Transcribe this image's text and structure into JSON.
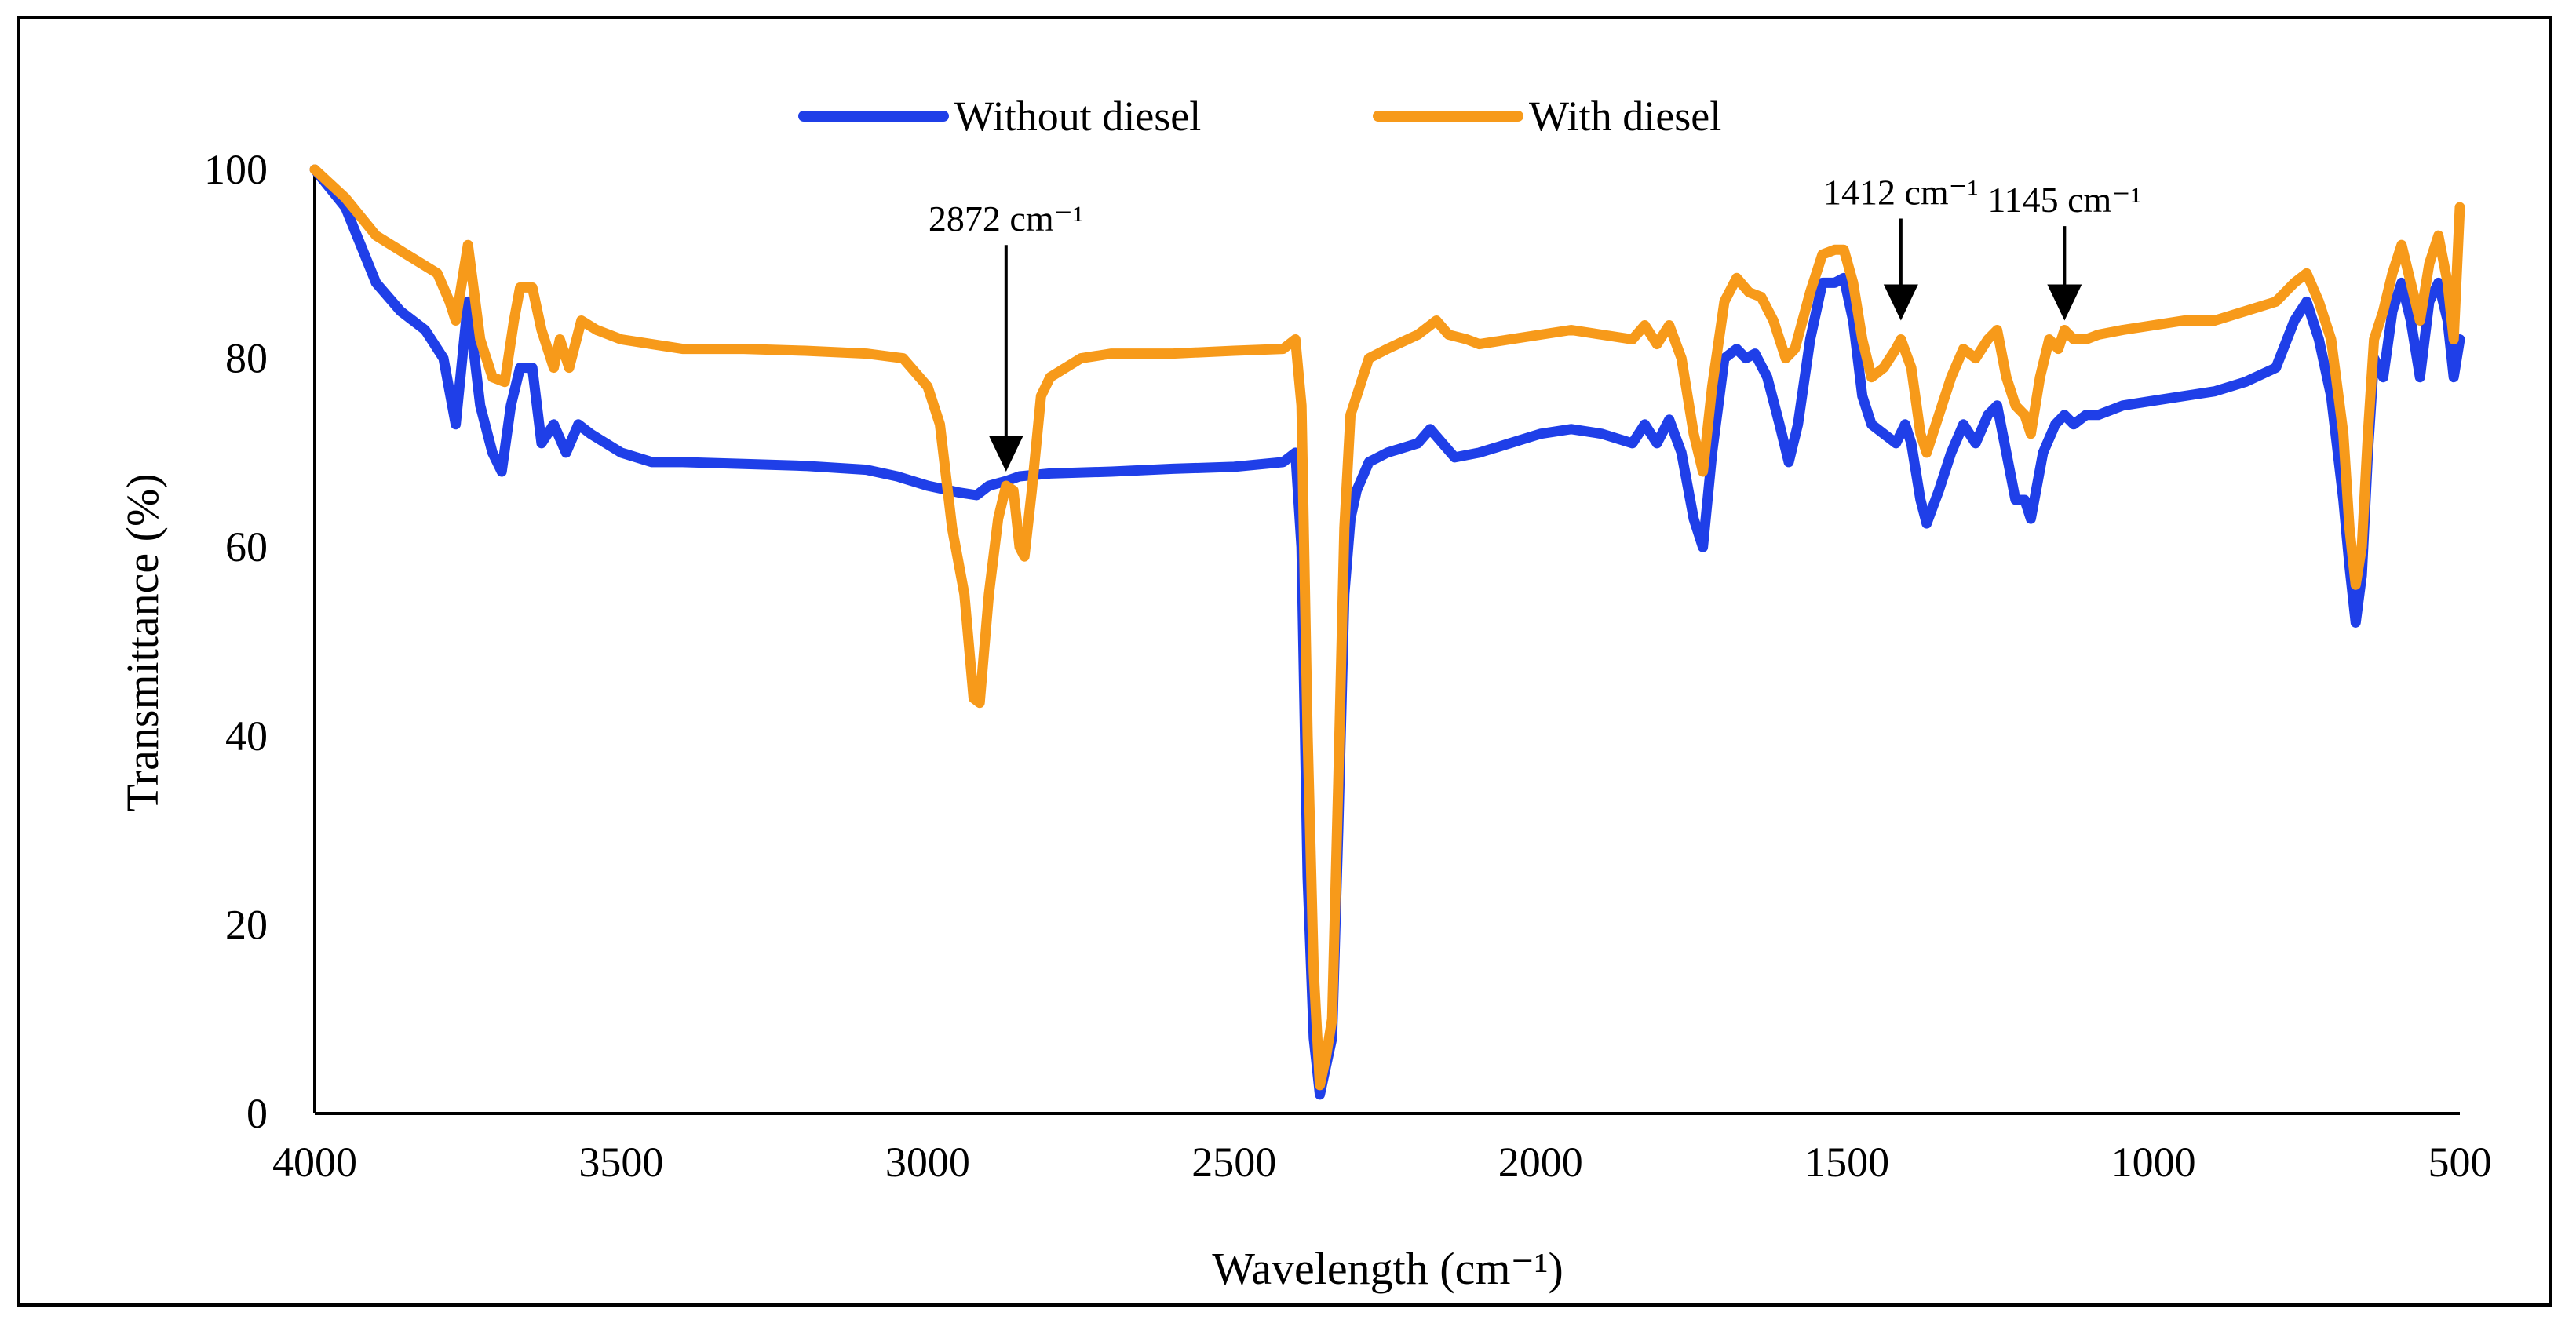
{
  "chart_data": {
    "type": "line",
    "title": "",
    "xlabel": "Wavelength (cm⁻¹)",
    "ylabel": "Transmittance (%)",
    "xlim": [
      4000,
      500
    ],
    "ylim": [
      0,
      100
    ],
    "x_ticks": [
      "4000",
      "3500",
      "3000",
      "2500",
      "2000",
      "1500",
      "1000",
      "500"
    ],
    "y_ticks": [
      "0",
      "20",
      "40",
      "60",
      "80",
      "100"
    ],
    "legend_position": "top-center",
    "grid": false,
    "series": [
      {
        "name": "Without diesel",
        "color": "#1f3fe8",
        "points": [
          [
            4000,
            100
          ],
          [
            3950,
            96
          ],
          [
            3900,
            88
          ],
          [
            3860,
            85
          ],
          [
            3820,
            83
          ],
          [
            3790,
            80
          ],
          [
            3770,
            73
          ],
          [
            3750,
            86
          ],
          [
            3730,
            75
          ],
          [
            3710,
            70
          ],
          [
            3695,
            68
          ],
          [
            3680,
            75
          ],
          [
            3665,
            79
          ],
          [
            3645,
            79
          ],
          [
            3630,
            71
          ],
          [
            3610,
            73
          ],
          [
            3590,
            70
          ],
          [
            3570,
            73
          ],
          [
            3550,
            72
          ],
          [
            3500,
            70
          ],
          [
            3450,
            69
          ],
          [
            3400,
            69
          ],
          [
            3300,
            68.8
          ],
          [
            3200,
            68.6
          ],
          [
            3100,
            68.2
          ],
          [
            3050,
            67.5
          ],
          [
            3000,
            66.5
          ],
          [
            2950,
            65.8
          ],
          [
            2920,
            65.5
          ],
          [
            2900,
            66.5
          ],
          [
            2872,
            67
          ],
          [
            2850,
            67.5
          ],
          [
            2800,
            67.8
          ],
          [
            2700,
            68
          ],
          [
            2600,
            68.3
          ],
          [
            2500,
            68.5
          ],
          [
            2420,
            69
          ],
          [
            2400,
            70
          ],
          [
            2390,
            60
          ],
          [
            2380,
            25
          ],
          [
            2370,
            8
          ],
          [
            2360,
            2
          ],
          [
            2350,
            5
          ],
          [
            2340,
            8
          ],
          [
            2330,
            30
          ],
          [
            2320,
            55
          ],
          [
            2310,
            63
          ],
          [
            2300,
            66
          ],
          [
            2280,
            69
          ],
          [
            2250,
            70
          ],
          [
            2200,
            71
          ],
          [
            2180,
            72.5
          ],
          [
            2160,
            71
          ],
          [
            2140,
            69.5
          ],
          [
            2100,
            70
          ],
          [
            2050,
            71
          ],
          [
            2000,
            72
          ],
          [
            1950,
            72.5
          ],
          [
            1900,
            72
          ],
          [
            1850,
            71
          ],
          [
            1830,
            73
          ],
          [
            1810,
            71
          ],
          [
            1790,
            73.5
          ],
          [
            1770,
            70
          ],
          [
            1750,
            63
          ],
          [
            1735,
            60
          ],
          [
            1720,
            70
          ],
          [
            1700,
            80
          ],
          [
            1680,
            81
          ],
          [
            1665,
            80
          ],
          [
            1650,
            80.5
          ],
          [
            1630,
            78
          ],
          [
            1610,
            73
          ],
          [
            1595,
            69
          ],
          [
            1580,
            73
          ],
          [
            1560,
            82
          ],
          [
            1540,
            88
          ],
          [
            1520,
            88
          ],
          [
            1505,
            88.5
          ],
          [
            1490,
            84
          ],
          [
            1475,
            76
          ],
          [
            1460,
            73
          ],
          [
            1440,
            72
          ],
          [
            1420,
            71
          ],
          [
            1405,
            73
          ],
          [
            1395,
            71
          ],
          [
            1380,
            65
          ],
          [
            1370,
            62.5
          ],
          [
            1350,
            66
          ],
          [
            1330,
            70
          ],
          [
            1310,
            73
          ],
          [
            1290,
            71
          ],
          [
            1270,
            74
          ],
          [
            1255,
            75
          ],
          [
            1240,
            70
          ],
          [
            1225,
            65
          ],
          [
            1210,
            65
          ],
          [
            1200,
            63
          ],
          [
            1180,
            70
          ],
          [
            1160,
            73
          ],
          [
            1145,
            74
          ],
          [
            1130,
            73
          ],
          [
            1110,
            74
          ],
          [
            1090,
            74
          ],
          [
            1050,
            75
          ],
          [
            1000,
            75.5
          ],
          [
            950,
            76
          ],
          [
            900,
            76.5
          ],
          [
            850,
            77.5
          ],
          [
            800,
            79
          ],
          [
            770,
            84
          ],
          [
            750,
            86
          ],
          [
            730,
            82
          ],
          [
            710,
            76
          ],
          [
            690,
            65
          ],
          [
            680,
            58
          ],
          [
            670,
            52
          ],
          [
            660,
            57
          ],
          [
            650,
            70
          ],
          [
            640,
            80
          ],
          [
            625,
            78
          ],
          [
            610,
            85
          ],
          [
            595,
            88
          ],
          [
            580,
            84
          ],
          [
            565,
            78
          ],
          [
            550,
            86
          ],
          [
            535,
            88
          ],
          [
            520,
            84
          ],
          [
            510,
            78
          ],
          [
            500,
            82
          ]
        ]
      },
      {
        "name": "With diesel",
        "color": "#f79a1a",
        "points": [
          [
            4000,
            100
          ],
          [
            3950,
            97
          ],
          [
            3900,
            93
          ],
          [
            3850,
            91
          ],
          [
            3800,
            89
          ],
          [
            3780,
            86
          ],
          [
            3770,
            84
          ],
          [
            3750,
            92
          ],
          [
            3730,
            82
          ],
          [
            3710,
            78
          ],
          [
            3690,
            77.5
          ],
          [
            3675,
            84
          ],
          [
            3665,
            87.5
          ],
          [
            3645,
            87.5
          ],
          [
            3630,
            83
          ],
          [
            3610,
            79
          ],
          [
            3600,
            82
          ],
          [
            3585,
            79
          ],
          [
            3565,
            84
          ],
          [
            3540,
            83
          ],
          [
            3500,
            82
          ],
          [
            3450,
            81.5
          ],
          [
            3400,
            81
          ],
          [
            3300,
            81
          ],
          [
            3200,
            80.8
          ],
          [
            3100,
            80.5
          ],
          [
            3040,
            80
          ],
          [
            3000,
            77
          ],
          [
            2980,
            73
          ],
          [
            2960,
            62
          ],
          [
            2940,
            55
          ],
          [
            2925,
            44
          ],
          [
            2915,
            43.5
          ],
          [
            2900,
            55
          ],
          [
            2885,
            63
          ],
          [
            2872,
            66.5
          ],
          [
            2860,
            66
          ],
          [
            2850,
            60
          ],
          [
            2842,
            59
          ],
          [
            2830,
            66
          ],
          [
            2815,
            76
          ],
          [
            2800,
            78
          ],
          [
            2750,
            80
          ],
          [
            2700,
            80.5
          ],
          [
            2600,
            80.5
          ],
          [
            2500,
            80.8
          ],
          [
            2420,
            81
          ],
          [
            2400,
            82
          ],
          [
            2390,
            75
          ],
          [
            2380,
            40
          ],
          [
            2370,
            15
          ],
          [
            2360,
            3
          ],
          [
            2350,
            6
          ],
          [
            2340,
            10
          ],
          [
            2330,
            35
          ],
          [
            2320,
            62
          ],
          [
            2310,
            74
          ],
          [
            2300,
            76
          ],
          [
            2280,
            80
          ],
          [
            2250,
            81
          ],
          [
            2200,
            82.5
          ],
          [
            2170,
            84
          ],
          [
            2150,
            82.5
          ],
          [
            2120,
            82
          ],
          [
            2100,
            81.5
          ],
          [
            2050,
            82
          ],
          [
            2000,
            82.5
          ],
          [
            1950,
            83
          ],
          [
            1900,
            82.5
          ],
          [
            1850,
            82
          ],
          [
            1830,
            83.5
          ],
          [
            1810,
            81.5
          ],
          [
            1790,
            83.5
          ],
          [
            1770,
            80
          ],
          [
            1750,
            72
          ],
          [
            1735,
            68
          ],
          [
            1720,
            77
          ],
          [
            1700,
            86
          ],
          [
            1680,
            88.5
          ],
          [
            1660,
            87
          ],
          [
            1640,
            86.5
          ],
          [
            1620,
            84
          ],
          [
            1600,
            80
          ],
          [
            1585,
            81
          ],
          [
            1560,
            87
          ],
          [
            1540,
            91
          ],
          [
            1520,
            91.5
          ],
          [
            1505,
            91.5
          ],
          [
            1490,
            88
          ],
          [
            1475,
            82
          ],
          [
            1460,
            78
          ],
          [
            1440,
            79
          ],
          [
            1420,
            81
          ],
          [
            1412,
            82
          ],
          [
            1395,
            79
          ],
          [
            1380,
            72
          ],
          [
            1370,
            70
          ],
          [
            1350,
            74
          ],
          [
            1330,
            78
          ],
          [
            1310,
            81
          ],
          [
            1290,
            80
          ],
          [
            1270,
            82
          ],
          [
            1255,
            83
          ],
          [
            1240,
            78
          ],
          [
            1225,
            75
          ],
          [
            1210,
            74
          ],
          [
            1200,
            72
          ],
          [
            1185,
            78
          ],
          [
            1170,
            82
          ],
          [
            1155,
            81
          ],
          [
            1145,
            83
          ],
          [
            1130,
            82
          ],
          [
            1110,
            82
          ],
          [
            1090,
            82.5
          ],
          [
            1050,
            83
          ],
          [
            1000,
            83.5
          ],
          [
            950,
            84
          ],
          [
            900,
            84
          ],
          [
            850,
            85
          ],
          [
            800,
            86
          ],
          [
            770,
            88
          ],
          [
            750,
            89
          ],
          [
            730,
            86
          ],
          [
            710,
            82
          ],
          [
            690,
            72
          ],
          [
            680,
            62
          ],
          [
            670,
            56
          ],
          [
            660,
            60
          ],
          [
            650,
            72
          ],
          [
            640,
            82
          ],
          [
            625,
            85
          ],
          [
            610,
            89
          ],
          [
            595,
            92
          ],
          [
            580,
            88
          ],
          [
            565,
            84
          ],
          [
            550,
            90
          ],
          [
            535,
            93
          ],
          [
            520,
            88
          ],
          [
            510,
            82
          ],
          [
            500,
            96
          ]
        ]
      }
    ],
    "annotations": [
      {
        "label": "2872 cm⁻¹",
        "x": 2872,
        "arrow_tip_y": 68,
        "label_y": 93.5
      },
      {
        "label": "1412 cm⁻¹",
        "x": 1412,
        "arrow_tip_y": 84,
        "label_y": 96.3
      },
      {
        "label": "1145 cm⁻¹",
        "x": 1145,
        "arrow_tip_y": 84,
        "label_y": 95.5
      }
    ]
  }
}
